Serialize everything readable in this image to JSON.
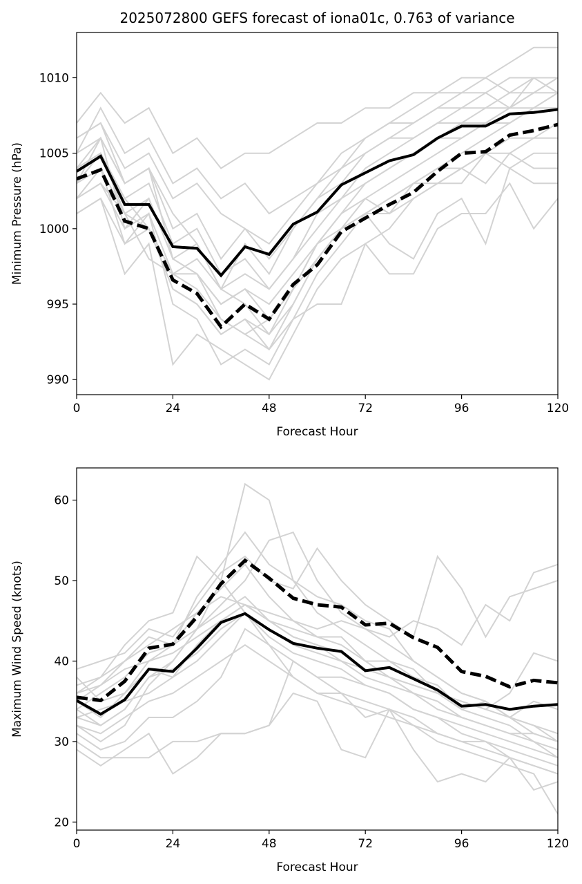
{
  "figure": {
    "title": "2025072800 GEFS forecast of iona01c, 0.763 of variance"
  },
  "chart_data": [
    {
      "type": "line",
      "title": "2025072800 GEFS forecast of iona01c, 0.763 of variance",
      "xlabel": "Forecast Hour",
      "ylabel": "Minimum Pressure (hPa)",
      "xlim": [
        0,
        120
      ],
      "ylim": [
        989,
        1013
      ],
      "xticks": [
        0,
        24,
        48,
        72,
        96,
        120
      ],
      "yticks": [
        990,
        995,
        1000,
        1005,
        1010
      ],
      "grid": false,
      "legend": "none",
      "colors": {
        "member": "#d3d3d3",
        "mean": "#000000",
        "weighted": "#000000"
      },
      "x": [
        0,
        6,
        12,
        18,
        24,
        30,
        36,
        42,
        48,
        54,
        60,
        66,
        72,
        78,
        84,
        90,
        96,
        102,
        108,
        114,
        120
      ],
      "members": [
        [
          1006,
          1007,
          1003,
          1004,
          1001,
          999,
          996,
          995,
          993,
          995,
          998,
          1000,
          1002,
          1003,
          1004,
          1005,
          1006,
          1007,
          1008,
          1009,
          1010
        ],
        [
          1003,
          1005,
          1002,
          1000,
          997,
          996,
          994,
          993,
          992,
          994,
          997,
          999,
          1001,
          1002,
          1003,
          1004,
          1005,
          1006,
          1007,
          1008,
          1009
        ],
        [
          1007,
          1009,
          1007,
          1008,
          1005,
          1006,
          1004,
          1005,
          1005,
          1006,
          1007,
          1007,
          1008,
          1008,
          1009,
          1009,
          1010,
          1010,
          1011,
          1012,
          1012
        ],
        [
          1004,
          1006,
          1000,
          1002,
          998,
          997,
          995,
          996,
          994,
          996,
          999,
          1001,
          1003,
          1004,
          1005,
          1006,
          1007,
          1007,
          1008,
          1008,
          1009
        ],
        [
          1001,
          1002,
          997,
          999,
          991,
          993,
          992,
          991,
          990,
          993,
          996,
          998,
          999,
          1000,
          1002,
          1003,
          1004,
          1005,
          1006,
          1006,
          1007
        ],
        [
          1005,
          1008,
          1005,
          1006,
          1003,
          1004,
          1002,
          1003,
          1001,
          1002,
          1003,
          1005,
          1006,
          1007,
          1008,
          1009,
          1009,
          1010,
          1009,
          1010,
          1010
        ],
        [
          1002,
          1003,
          1001,
          1000,
          996,
          995,
          993,
          994,
          992,
          995,
          998,
          1000,
          1001,
          1001,
          1002,
          1003,
          1003,
          1005,
          1004,
          1005,
          1005
        ],
        [
          1003,
          1004,
          999,
          1001,
          995,
          994,
          991,
          992,
          991,
          994,
          995,
          995,
          999,
          997,
          997,
          1000,
          1001,
          1001,
          1003,
          1000,
          1002
        ],
        [
          1004,
          1005,
          1002,
          1003,
          999,
          1000,
          997,
          998,
          996,
          998,
          1001,
          1002,
          1004,
          1005,
          1006,
          1007,
          1007,
          1008,
          1008,
          1009,
          1009
        ],
        [
          1006,
          1007,
          1004,
          1005,
          1002,
          1003,
          1001,
          1000,
          999,
          1001,
          1003,
          1004,
          1005,
          1006,
          1006,
          1007,
          1008,
          1008,
          1009,
          1009,
          1010
        ],
        [
          1002,
          1004,
          1001,
          998,
          997,
          997,
          995,
          996,
          995,
          997,
          999,
          1001,
          1002,
          1001,
          1003,
          1004,
          1004,
          1003,
          1005,
          1004,
          1004
        ],
        [
          1003,
          1006,
          1003,
          1004,
          998,
          999,
          996,
          999,
          997,
          1000,
          1002,
          1003,
          1005,
          1006,
          1007,
          1008,
          1008,
          1009,
          1008,
          1010,
          1009
        ],
        [
          1005,
          1006,
          1003,
          1004,
          1000,
          1001,
          998,
          1000,
          998,
          1000,
          1002,
          1004,
          1006,
          1007,
          1007,
          1008,
          1009,
          1009,
          1010,
          1010,
          1010
        ],
        [
          1001,
          1002,
          999,
          1000,
          996,
          995,
          993,
          994,
          993,
          996,
          998,
          1000,
          1001,
          1002,
          1003,
          1003,
          1004,
          1005,
          1005,
          1006,
          1006
        ],
        [
          1004,
          1005,
          1001,
          1002,
          998,
          997,
          994,
          993,
          994,
          996,
          999,
          1000,
          1001,
          999,
          998,
          1001,
          1002,
          999,
          1004,
          1003,
          1003
        ],
        [
          1002,
          1003,
          1000,
          1001,
          997,
          998,
          996,
          997,
          996,
          998,
          1000,
          1002,
          1003,
          1004,
          1005,
          1006,
          1006,
          1007,
          1007,
          1008,
          1008
        ]
      ],
      "ensemble_mean": [
        1003.8,
        1004.8,
        1001.6,
        1001.6,
        998.8,
        998.7,
        996.9,
        998.8,
        998.3,
        1000.3,
        1001.1,
        1002.9,
        1003.7,
        1004.5,
        1004.9,
        1006.0,
        1006.8,
        1006.8,
        1007.6,
        1007.7,
        1007.9
      ],
      "weighted": [
        1003.3,
        1003.9,
        1000.5,
        1000.0,
        996.6,
        995.7,
        993.5,
        995.0,
        994.0,
        996.3,
        997.6,
        999.8,
        1000.7,
        1001.6,
        1002.4,
        1003.8,
        1005.0,
        1005.1,
        1006.2,
        1006.5,
        1006.9
      ]
    },
    {
      "type": "line",
      "title": "",
      "xlabel": "Forecast Hour",
      "ylabel": "Maximum Wind Speed (knots)",
      "xlim": [
        0,
        120
      ],
      "ylim": [
        19,
        64
      ],
      "xticks": [
        0,
        24,
        48,
        72,
        96,
        120
      ],
      "yticks": [
        20,
        30,
        40,
        50,
        60
      ],
      "grid": false,
      "legend": "none",
      "colors": {
        "member": "#d3d3d3",
        "mean": "#000000",
        "weighted": "#000000"
      },
      "x": [
        0,
        6,
        12,
        18,
        24,
        30,
        36,
        42,
        48,
        54,
        60,
        66,
        72,
        78,
        84,
        90,
        96,
        102,
        108,
        114,
        120
      ],
      "members": [
        [
          35,
          37,
          40,
          43,
          42,
          48,
          52,
          56,
          52,
          50,
          48,
          47,
          45,
          44,
          40,
          38,
          36,
          35,
          33,
          31,
          30
        ],
        [
          32,
          30,
          32,
          37,
          40,
          44,
          50,
          62,
          60,
          50,
          46,
          44,
          42,
          40,
          39,
          36,
          34,
          33,
          32,
          30,
          28
        ],
        [
          38,
          35,
          36,
          40,
          42,
          46,
          49,
          52,
          48,
          45,
          44,
          45,
          44,
          43,
          45,
          44,
          42,
          47,
          45,
          51,
          52
        ],
        [
          30,
          28,
          28,
          28,
          30,
          30,
          31,
          31,
          32,
          40,
          38,
          36,
          35,
          34,
          33,
          31,
          30,
          30,
          28,
          27,
          26
        ],
        [
          33,
          32,
          34,
          38,
          40,
          44,
          47,
          50,
          55,
          56,
          50,
          46,
          44,
          42,
          40,
          38,
          36,
          35,
          33,
          32,
          30
        ],
        [
          36,
          38,
          40,
          42,
          44,
          46,
          48,
          47,
          45,
          43,
          42,
          40,
          39,
          38,
          37,
          36,
          35,
          34,
          33,
          32,
          31
        ],
        [
          32,
          31,
          33,
          35,
          36,
          38,
          40,
          42,
          40,
          38,
          36,
          35,
          34,
          33,
          32,
          30,
          29,
          28,
          27,
          26,
          21
        ],
        [
          34,
          36,
          38,
          41,
          42,
          44,
          46,
          48,
          45,
          44,
          43,
          42,
          40,
          38,
          37,
          36,
          35,
          34,
          36,
          41,
          40
        ],
        [
          31,
          29,
          30,
          33,
          33,
          35,
          38,
          44,
          42,
          40,
          38,
          38,
          37,
          36,
          34,
          33,
          31,
          30,
          29,
          28,
          27
        ],
        [
          35,
          33,
          36,
          39,
          38,
          42,
          45,
          47,
          46,
          45,
          43,
          43,
          40,
          40,
          38,
          37,
          34,
          35,
          33,
          35,
          34
        ],
        [
          37,
          38,
          42,
          45,
          46,
          53,
          50,
          46,
          42,
          38,
          36,
          36,
          33,
          34,
          32,
          31,
          30,
          29,
          28,
          27,
          26
        ],
        [
          33,
          34,
          35,
          36,
          38,
          40,
          43,
          46,
          44,
          42,
          41,
          40,
          38,
          37,
          36,
          35,
          33,
          32,
          31,
          31,
          30
        ],
        [
          29,
          27,
          29,
          31,
          26,
          28,
          31,
          31,
          32,
          36,
          35,
          29,
          28,
          34,
          29,
          25,
          26,
          25,
          28,
          24,
          25
        ],
        [
          39,
          40,
          41,
          44,
          43,
          47,
          51,
          53,
          50,
          49,
          54,
          50,
          47,
          45,
          43,
          53,
          49,
          43,
          48,
          49,
          50
        ],
        [
          34,
          32,
          34,
          38,
          39,
          41,
          44,
          46,
          43,
          41,
          40,
          39,
          37,
          36,
          34,
          33,
          32,
          31,
          30,
          29,
          28
        ],
        [
          36,
          37,
          39,
          40,
          41,
          43,
          45,
          47,
          45,
          43,
          42,
          41,
          39,
          38,
          36,
          34,
          33,
          32,
          31,
          30,
          29
        ]
      ],
      "ensemble_mean": [
        35.1,
        33.4,
        35.2,
        39.0,
        38.7,
        41.6,
        44.8,
        45.9,
        43.9,
        42.2,
        41.6,
        41.2,
        38.8,
        39.2,
        37.8,
        36.4,
        34.4,
        34.6,
        34.0,
        34.4,
        34.6
      ],
      "weighted": [
        35.5,
        35.1,
        37.5,
        41.6,
        42.1,
        45.5,
        49.6,
        52.5,
        50.3,
        47.8,
        47.0,
        46.7,
        44.5,
        44.7,
        42.9,
        41.7,
        38.7,
        38.1,
        36.8,
        37.6,
        37.3
      ]
    }
  ]
}
